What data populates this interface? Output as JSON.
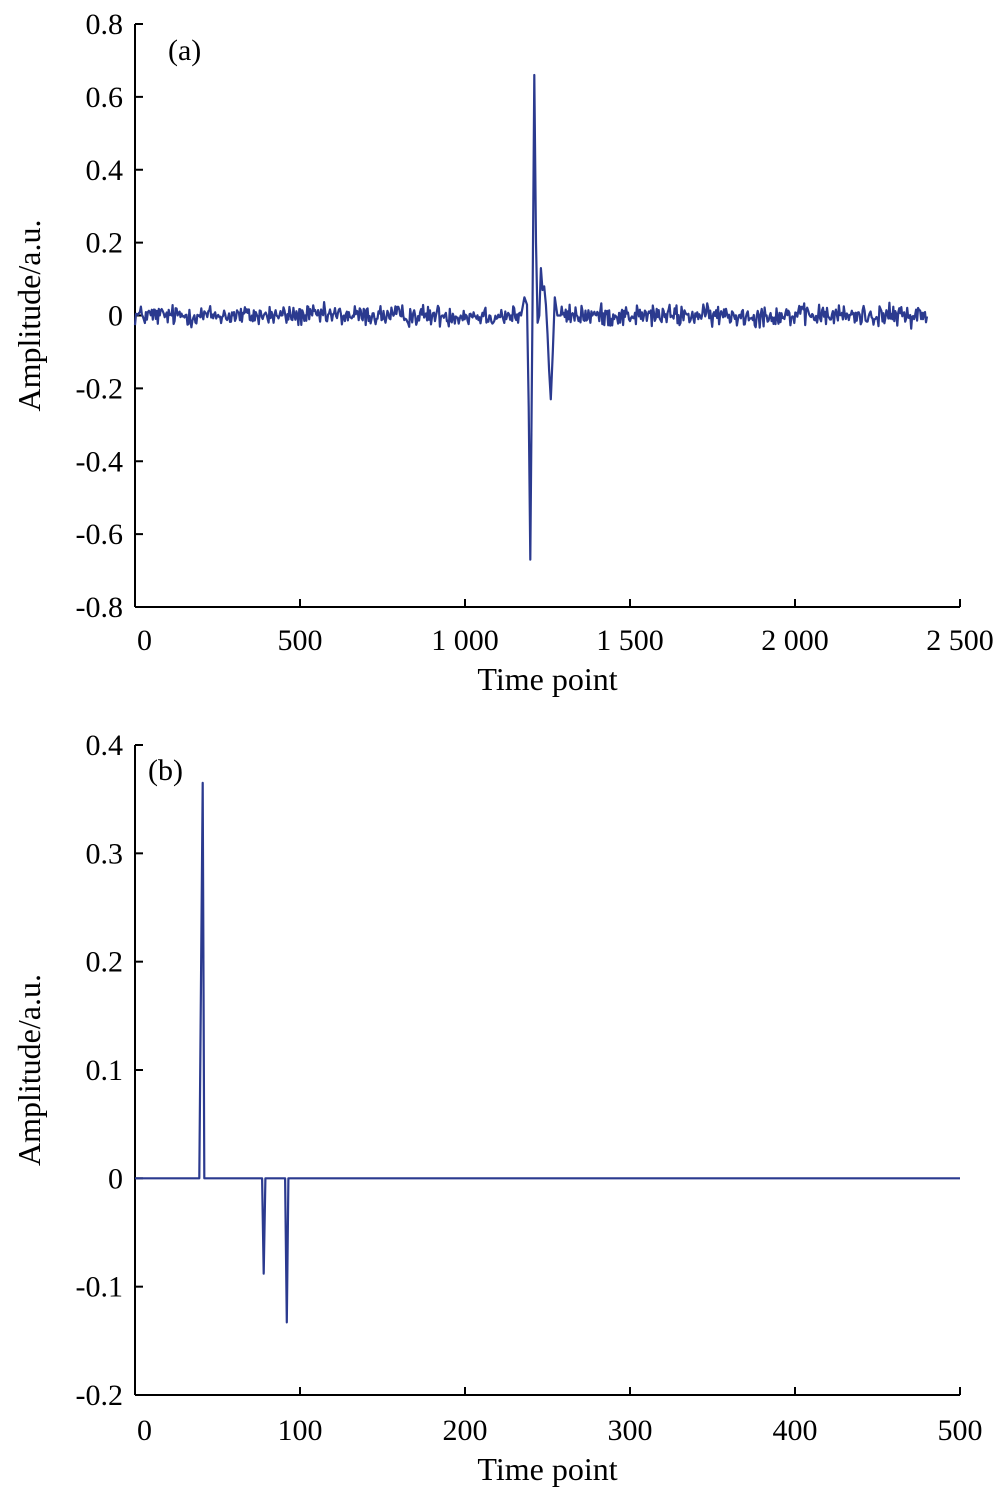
{
  "chart_data": [
    {
      "type": "line",
      "panel_label": "(a)",
      "xlabel": "Time point",
      "ylabel": "Amplitude/a.u.",
      "xlim": [
        0,
        2500
      ],
      "ylim": [
        -0.8,
        0.8
      ],
      "xticks": [
        0,
        500,
        1000,
        1500,
        2000,
        2500
      ],
      "xtick_labels": [
        "0",
        "500",
        "1 000",
        "1 500",
        "2 000",
        "2 500"
      ],
      "yticks": [
        0.8,
        0.6,
        0.4,
        0.2,
        0,
        -0.2,
        -0.4,
        -0.6,
        -0.8
      ],
      "ytick_labels": [
        "0.8",
        "0.6",
        "0.4",
        "0.2",
        "0",
        "-0.2",
        "-0.4",
        "-0.6",
        "-0.8"
      ],
      "grid": false,
      "color": "#2b3a8f",
      "series": [
        {
          "noise": {
            "x_start": 0,
            "x_end": 2400,
            "amplitude": 0.022
          },
          "x": [
            1170,
            1180,
            1188,
            1193,
            1198,
            1205,
            1210,
            1215,
            1220,
            1225,
            1230,
            1235,
            1240,
            1245,
            1250,
            1255,
            1260,
            1266,
            1272,
            1280,
            1290
          ],
          "y": [
            0.0,
            0.05,
            0.03,
            -0.25,
            -0.67,
            0.05,
            0.66,
            0.2,
            -0.02,
            0.0,
            0.13,
            0.07,
            0.08,
            0.03,
            -0.05,
            -0.15,
            -0.23,
            -0.1,
            0.05,
            0.0,
            0.0
          ]
        }
      ]
    },
    {
      "type": "line",
      "panel_label": "(b)",
      "xlabel": "Time point",
      "ylabel": "Amplitude/a.u.",
      "xlim": [
        0,
        500
      ],
      "ylim": [
        -0.2,
        0.4
      ],
      "xticks": [
        0,
        100,
        200,
        300,
        400,
        500
      ],
      "xtick_labels": [
        "0",
        "100",
        "200",
        "300",
        "400",
        "500"
      ],
      "yticks": [
        0.4,
        0.3,
        0.2,
        0.1,
        0,
        -0.1,
        -0.2
      ],
      "ytick_labels": [
        "0.4",
        "0.3",
        "0.2",
        "0.1",
        "0",
        "-0.1",
        "-0.2"
      ],
      "grid": false,
      "color": "#2b3a8f",
      "series": [
        {
          "x": [
            0,
            39,
            41,
            42,
            77,
            78,
            79,
            91,
            92,
            93,
            500
          ],
          "y": [
            0,
            0,
            0.365,
            0,
            0,
            -0.088,
            0,
            0,
            -0.133,
            0,
            0
          ]
        }
      ]
    }
  ]
}
